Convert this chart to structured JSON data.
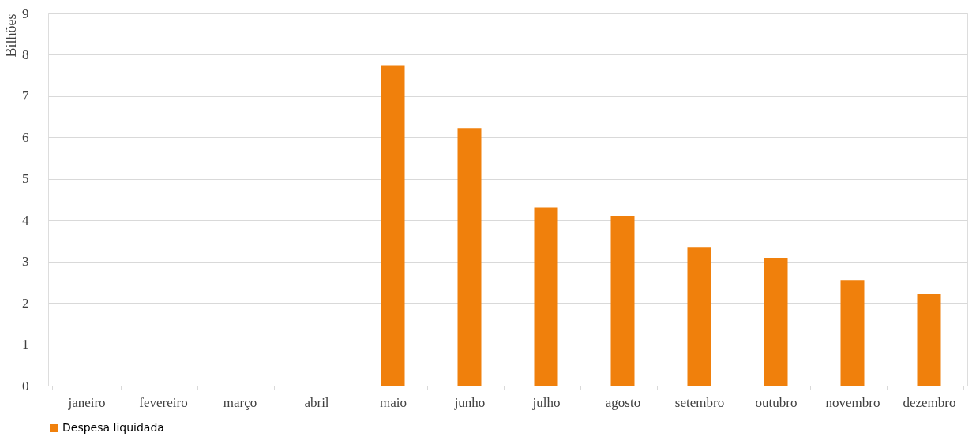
{
  "chart_data": {
    "type": "bar",
    "ylabel": "Bilhões",
    "categories": [
      "janeiro",
      "fevereiro",
      "março",
      "abril",
      "maio",
      "junho",
      "julho",
      "agosto",
      "setembro",
      "outubro",
      "novembro",
      "dezembro"
    ],
    "series": [
      {
        "name": "Despesa liquidada",
        "color": "#f0800c",
        "values": [
          null,
          null,
          null,
          null,
          7.73,
          6.23,
          4.3,
          4.1,
          3.35,
          3.09,
          2.55,
          2.21
        ]
      }
    ],
    "ylim": [
      0,
      9
    ],
    "yticks": [
      0,
      1,
      2,
      3,
      4,
      5,
      6,
      7,
      8,
      9
    ],
    "grid": "y",
    "legend": "bottom"
  }
}
